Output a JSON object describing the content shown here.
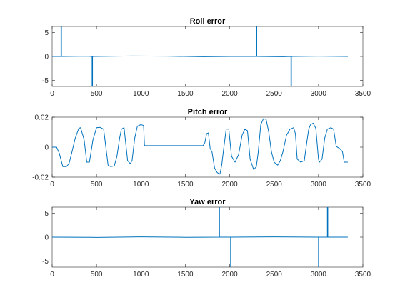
{
  "chart_data": [
    {
      "type": "line",
      "title": "Roll error",
      "xlabel": "",
      "ylabel": "",
      "xlim": [
        0,
        3500
      ],
      "ylim": [
        -6.28,
        6.28
      ],
      "xticks": [
        0,
        500,
        1000,
        1500,
        2000,
        2500,
        3000,
        3500
      ],
      "yticks": [
        -5,
        0,
        5
      ],
      "ytick_labels": [
        "-5",
        "0",
        "5"
      ],
      "grid": false,
      "color": "#0072BD",
      "series": [
        {
          "x": [
            0,
            100,
            100,
            105,
            105,
            400,
            450,
            450,
            455,
            455,
            900,
            1300,
            1700,
            2000,
            2300,
            2300,
            2305,
            2305,
            2600,
            2690,
            2690,
            2695,
            2695,
            3000,
            3330
          ],
          "values": [
            0,
            0,
            6.3,
            6.3,
            0,
            0.05,
            0,
            -6.3,
            -6.3,
            0,
            0.1,
            0.05,
            -0.05,
            0,
            0,
            6.3,
            6.3,
            0,
            -0.05,
            0,
            -6.3,
            -6.3,
            0,
            0.05,
            0
          ]
        }
      ]
    },
    {
      "type": "line",
      "title": "Pitch error",
      "xlabel": "",
      "ylabel": "",
      "xlim": [
        0,
        3500
      ],
      "ylim": [
        -0.02,
        0.02
      ],
      "xticks": [
        0,
        500,
        1000,
        1500,
        2000,
        2500,
        3000,
        3500
      ],
      "yticks": [
        -0.02,
        0,
        0.02
      ],
      "ytick_labels": [
        "-0.02",
        "0",
        "0.02"
      ],
      "grid": false,
      "color": "#0072BD",
      "series": [
        {
          "x": [
            0,
            50,
            80,
            120,
            160,
            190,
            220,
            260,
            300,
            320,
            360,
            390,
            420,
            460,
            500,
            540,
            580,
            630,
            660,
            700,
            730,
            760,
            780,
            810,
            850,
            880,
            900,
            930,
            960,
            1000,
            1030,
            1040,
            1100,
            1500,
            1700,
            1720,
            1740,
            1760,
            1780,
            1800,
            1830,
            1860,
            1890,
            1910,
            1930,
            1960,
            1990,
            2020,
            2060,
            2100,
            2140,
            2170,
            2200,
            2230,
            2270,
            2300,
            2320,
            2350,
            2380,
            2410,
            2440,
            2470,
            2500,
            2540,
            2570,
            2600,
            2640,
            2680,
            2720,
            2740,
            2760,
            2800,
            2840,
            2870,
            2890,
            2910,
            2940,
            2970,
            3000,
            3010,
            3040,
            3070,
            3100,
            3140,
            3170,
            3200,
            3240,
            3270,
            3290,
            3330
          ],
          "values": [
            0,
            0,
            -0.004,
            -0.013,
            -0.013,
            -0.011,
            -0.004,
            0.006,
            0.0125,
            0.013,
            0.005,
            -0.01,
            -0.01,
            0.005,
            0.013,
            0.0132,
            0.012,
            -0.012,
            -0.013,
            -0.0125,
            -0.006,
            0.006,
            0.012,
            0.013,
            -0.009,
            -0.011,
            -0.009,
            0.006,
            0.014,
            0.015,
            0.0145,
            0.001,
            0.001,
            0.001,
            0.001,
            0.003,
            0.009,
            0.0095,
            -0.001,
            -0.003,
            -0.014,
            -0.017,
            -0.018,
            -0.012,
            -0.002,
            0.012,
            0.012,
            -0.006,
            -0.01,
            -0.005,
            0.008,
            0.012,
            0.011,
            -0.008,
            -0.015,
            -0.013,
            -0.004,
            0.015,
            0.019,
            0.0185,
            0.01,
            -0.003,
            -0.01,
            -0.012,
            -0.009,
            -0.003,
            0.008,
            0.012,
            0.013,
            0.009,
            -0.008,
            -0.01,
            -0.009,
            0.004,
            0.012,
            0.015,
            0.016,
            0.0125,
            -0.008,
            -0.01,
            -0.008,
            0.006,
            0.012,
            0.013,
            0.012,
            0.0005,
            -0.001,
            -0.003,
            -0.01,
            -0.01
          ]
        }
      ]
    },
    {
      "type": "line",
      "title": "Yaw error",
      "xlabel": "",
      "ylabel": "",
      "xlim": [
        0,
        3500
      ],
      "ylim": [
        -6.28,
        6.28
      ],
      "xticks": [
        0,
        500,
        1000,
        1500,
        2000,
        2500,
        3000,
        3500
      ],
      "yticks": [
        -5,
        0,
        5
      ],
      "ytick_labels": [
        "-5",
        "0",
        "5"
      ],
      "grid": false,
      "color": "#0072BD",
      "series": [
        {
          "x": [
            0,
            500,
            1000,
            1500,
            1880,
            1880,
            1885,
            1885,
            2010,
            2010,
            2015,
            2015,
            2500,
            3000,
            3000,
            3005,
            3005,
            3100,
            3100,
            3105,
            3105,
            3330
          ],
          "values": [
            0,
            -0.05,
            0.05,
            -0.03,
            0,
            6.3,
            6.3,
            0,
            0,
            -6.3,
            -6.3,
            0,
            0.05,
            0,
            -6.3,
            -6.3,
            0,
            0,
            6.3,
            6.3,
            0,
            0
          ]
        }
      ]
    }
  ]
}
